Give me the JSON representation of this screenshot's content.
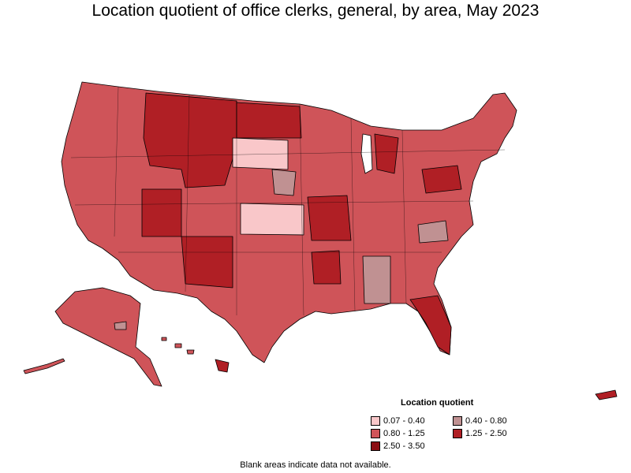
{
  "title": "Location quotient of office clerks, general, by area, May 2023",
  "legend": {
    "title": "Location quotient",
    "items": [
      {
        "label": "0.07 - 0.40",
        "color": "#f9c7c9"
      },
      {
        "label": "0.40 - 0.80",
        "color": "#c09192"
      },
      {
        "label": "0.80 - 1.25",
        "color": "#cf5459"
      },
      {
        "label": "1.25 - 2.50",
        "color": "#b01f25"
      },
      {
        "label": "2.50 - 3.50",
        "color": "#8b0e13"
      }
    ]
  },
  "footnote": "Blank areas indicate data not available."
}
